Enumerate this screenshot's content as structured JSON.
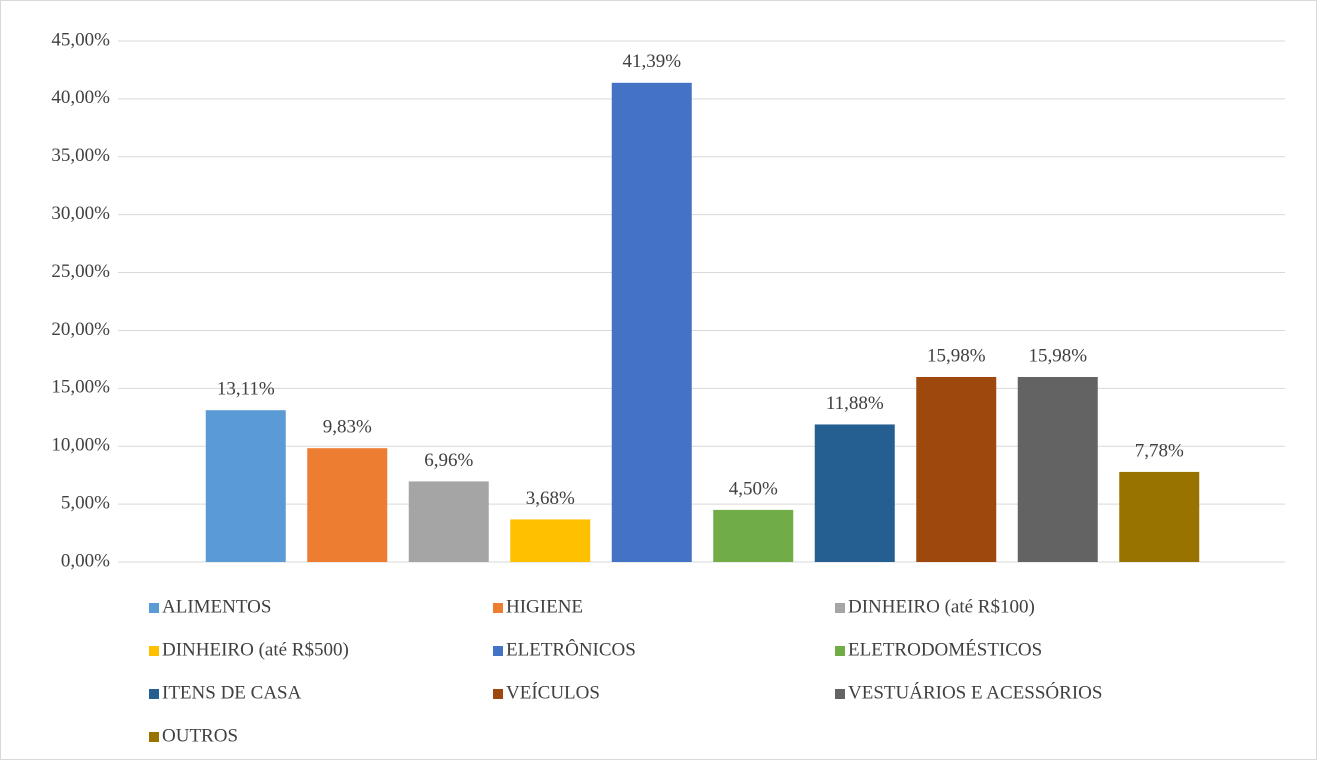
{
  "chart_data": {
    "type": "bar",
    "series": [
      {
        "name": "ALIMENTOS",
        "color": "#5b9bd5",
        "values": [
          13.11
        ],
        "value_labels": [
          "13,11%"
        ]
      },
      {
        "name": "HIGIENE",
        "color": "#ed7d31",
        "values": [
          9.83
        ],
        "value_labels": [
          "9,83%"
        ]
      },
      {
        "name": "DINHEIRO (até R$100)",
        "color": "#a5a5a5",
        "values": [
          6.96
        ],
        "value_labels": [
          "6,96%"
        ]
      },
      {
        "name": "DINHEIRO (até R$500)",
        "color": "#ffc000",
        "values": [
          3.68
        ],
        "value_labels": [
          "3,68%"
        ]
      },
      {
        "name": "ELETRÔNICOS",
        "color": "#4472c4",
        "values": [
          41.39
        ],
        "value_labels": [
          "41,39%"
        ]
      },
      {
        "name": "ELETRODOMÉSTICOS",
        "color": "#70ad47",
        "values": [
          4.5
        ],
        "value_labels": [
          "4,50%"
        ]
      },
      {
        "name": "ITENS DE CASA",
        "color": "#255e91",
        "values": [
          11.88
        ],
        "value_labels": [
          "11,88%"
        ]
      },
      {
        "name": "VEÍCULOS",
        "color": "#9e480e",
        "values": [
          15.98
        ],
        "value_labels": [
          "15,98%"
        ]
      },
      {
        "name": "VESTUÁRIOS E ACESSÓRIOS",
        "color": "#636363",
        "values": [
          15.98
        ],
        "value_labels": [
          "15,98%"
        ]
      },
      {
        "name": "OUTROS",
        "color": "#997300",
        "values": [
          7.78
        ],
        "value_labels": [
          "7,78%"
        ]
      }
    ],
    "ylim": [
      0,
      45
    ],
    "yticks": [
      {
        "value": 0,
        "label": "0,00%"
      },
      {
        "value": 5,
        "label": "5,00%"
      },
      {
        "value": 10,
        "label": "10,00%"
      },
      {
        "value": 15,
        "label": "15,00%"
      },
      {
        "value": 20,
        "label": "20,00%"
      },
      {
        "value": 25,
        "label": "25,00%"
      },
      {
        "value": 30,
        "label": "30,00%"
      },
      {
        "value": 35,
        "label": "35,00%"
      },
      {
        "value": 40,
        "label": "40,00%"
      },
      {
        "value": 45,
        "label": "45,00%"
      }
    ],
    "grid": true,
    "legend": "bottom"
  }
}
